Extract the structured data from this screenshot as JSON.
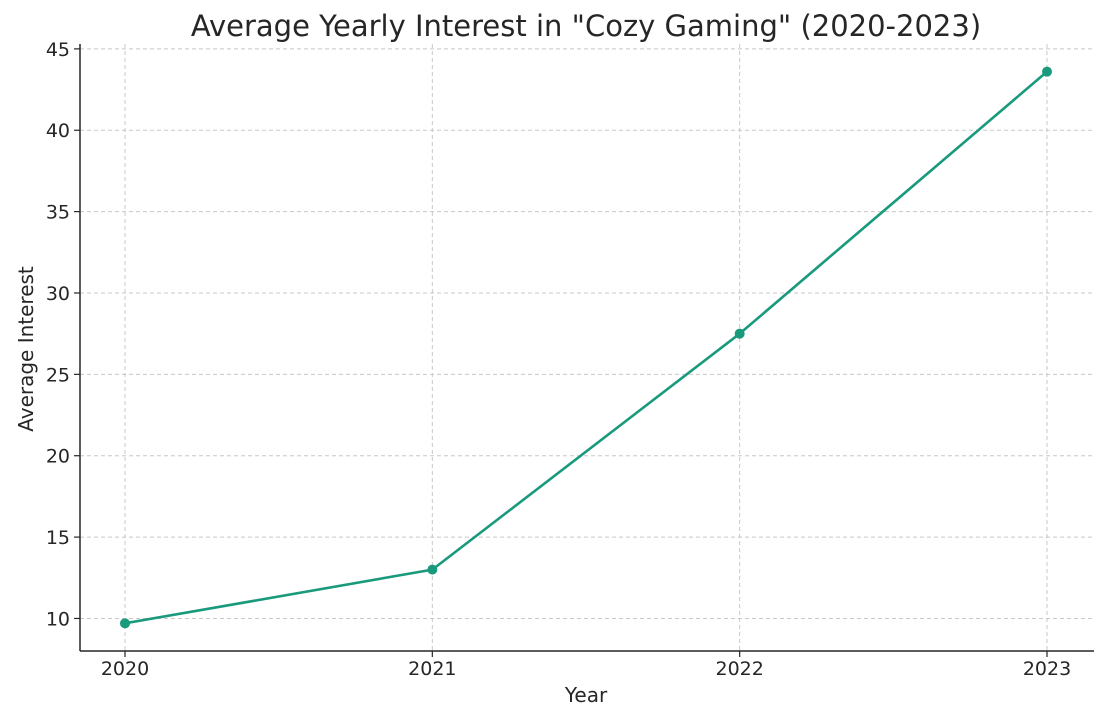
{
  "chart_data": {
    "type": "line",
    "title": "Average Yearly Interest in \"Cozy Gaming\" (2020-2023)",
    "xlabel": "Year",
    "ylabel": "Average Interest",
    "x": [
      "2020",
      "2021",
      "2022",
      "2023"
    ],
    "series": [
      {
        "values": [
          9.7,
          13.0,
          27.5,
          43.6
        ]
      }
    ],
    "ylim": [
      8,
      45.3
    ],
    "yticks": [
      10,
      15,
      20,
      25,
      30,
      35,
      40,
      45
    ],
    "grid": true,
    "markers": true,
    "colors": {
      "line": "#1a9a7c"
    }
  }
}
